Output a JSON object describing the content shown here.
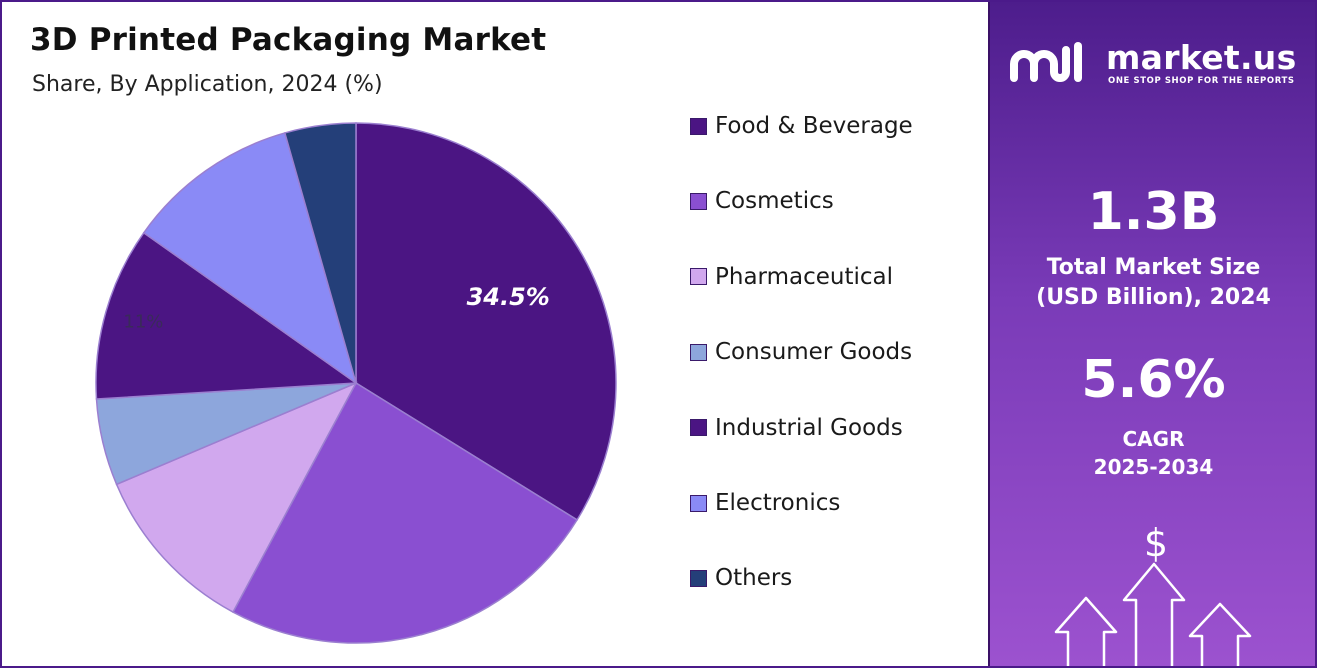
{
  "title": "3D Printed Packaging Market",
  "subtitle": "Share, By Application, 2024 (%)",
  "chart_data": {
    "type": "pie",
    "title": "3D Printed Packaging Market",
    "subtitle": "Share, By Application, 2024 (%)",
    "legend_position": "right",
    "slices": [
      {
        "name": "Food & Beverage",
        "value": 34.5,
        "color": "#4b1583",
        "label": "34.5%"
      },
      {
        "name": "Cosmetics",
        "value": 24.5,
        "color": "#8a4fd1",
        "label": ""
      },
      {
        "name": "Pharmaceutical",
        "value": 11.0,
        "color": "#d1a8ee",
        "label": ""
      },
      {
        "name": "Consumer Goods",
        "value": 5.5,
        "color": "#8da6dc",
        "label": ""
      },
      {
        "name": "Industrial Goods",
        "value": 11.0,
        "color": "#4b1583",
        "label": "11%"
      },
      {
        "name": "Electronics",
        "value": 11.0,
        "color": "#8a8af6",
        "label": ""
      },
      {
        "name": "Others",
        "value": 4.5,
        "color": "#243f79",
        "label": ""
      }
    ]
  },
  "legend": [
    {
      "label": "Food & Beverage",
      "color": "#4b1583"
    },
    {
      "label": "Cosmetics",
      "color": "#8a4fd1"
    },
    {
      "label": "Pharmaceutical",
      "color": "#d1a8ee"
    },
    {
      "label": "Consumer Goods",
      "color": "#8da6dc"
    },
    {
      "label": "Industrial Goods",
      "color": "#4b1583"
    },
    {
      "label": "Electronics",
      "color": "#8a8af6"
    },
    {
      "label": "Others",
      "color": "#243f79"
    }
  ],
  "sidebar": {
    "brand_name": "market.us",
    "brand_tagline": "ONE STOP SHOP FOR THE REPORTS",
    "brand_icon": "market-us-logo-icon",
    "market_size_value": "1.3B",
    "market_size_label_line1": "Total Market Size",
    "market_size_label_line2": "(USD Billion), 2024",
    "cagr_value": "5.6%",
    "cagr_label_line1": "CAGR",
    "cagr_label_line2": "2025-2034",
    "currency_symbol": "$",
    "growth_icon": "growth-arrows-icon"
  }
}
